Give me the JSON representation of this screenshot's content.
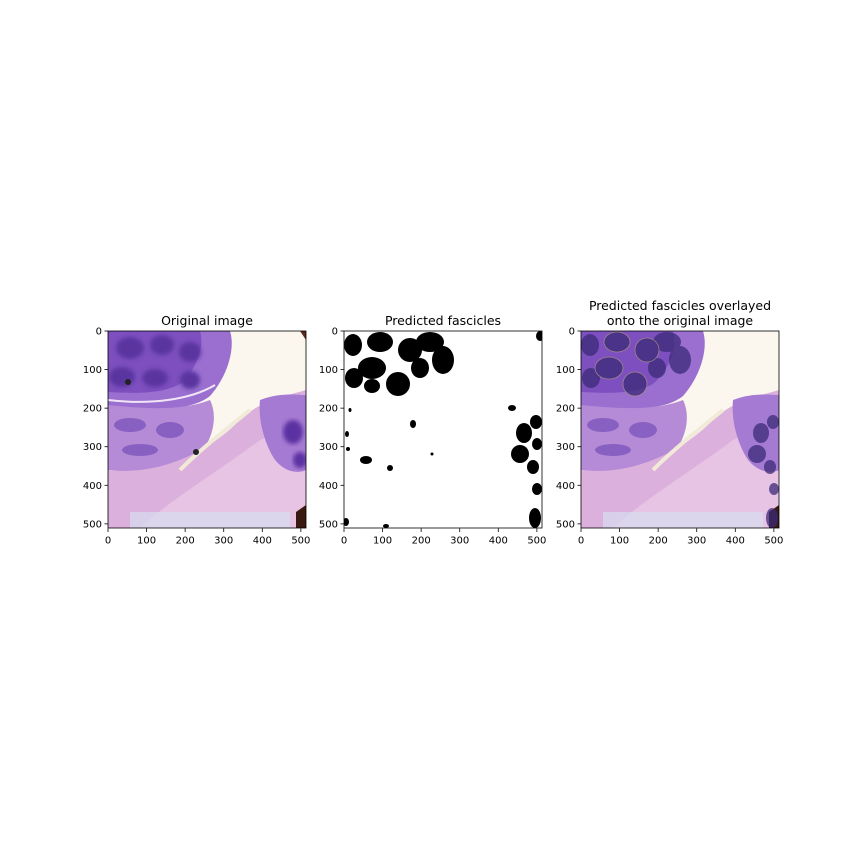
{
  "figure": {
    "panels": [
      {
        "id": "original",
        "title": [
          "Original image"
        ],
        "kind": "tissue"
      },
      {
        "id": "mask",
        "title": [
          "Predicted fascicles"
        ],
        "kind": "mask"
      },
      {
        "id": "overlay",
        "title": [
          "Predicted fascicles overlayed",
          "onto the original image"
        ],
        "kind": "overlay"
      }
    ],
    "x_ticks": [
      "0",
      "100",
      "200",
      "300",
      "400",
      "500"
    ],
    "y_ticks": [
      "0",
      "100",
      "200",
      "300",
      "400",
      "500"
    ],
    "image_extent": [
      0,
      512
    ],
    "colors": {
      "tissue_background": "#fbf6ee",
      "tissue_purple": "#8b5fc7",
      "tissue_pink": "#d9a7da",
      "fascicle_dark": "#3b2a78",
      "mask_fascicle": "#000000",
      "mask_background": "#ffffff"
    }
  }
}
